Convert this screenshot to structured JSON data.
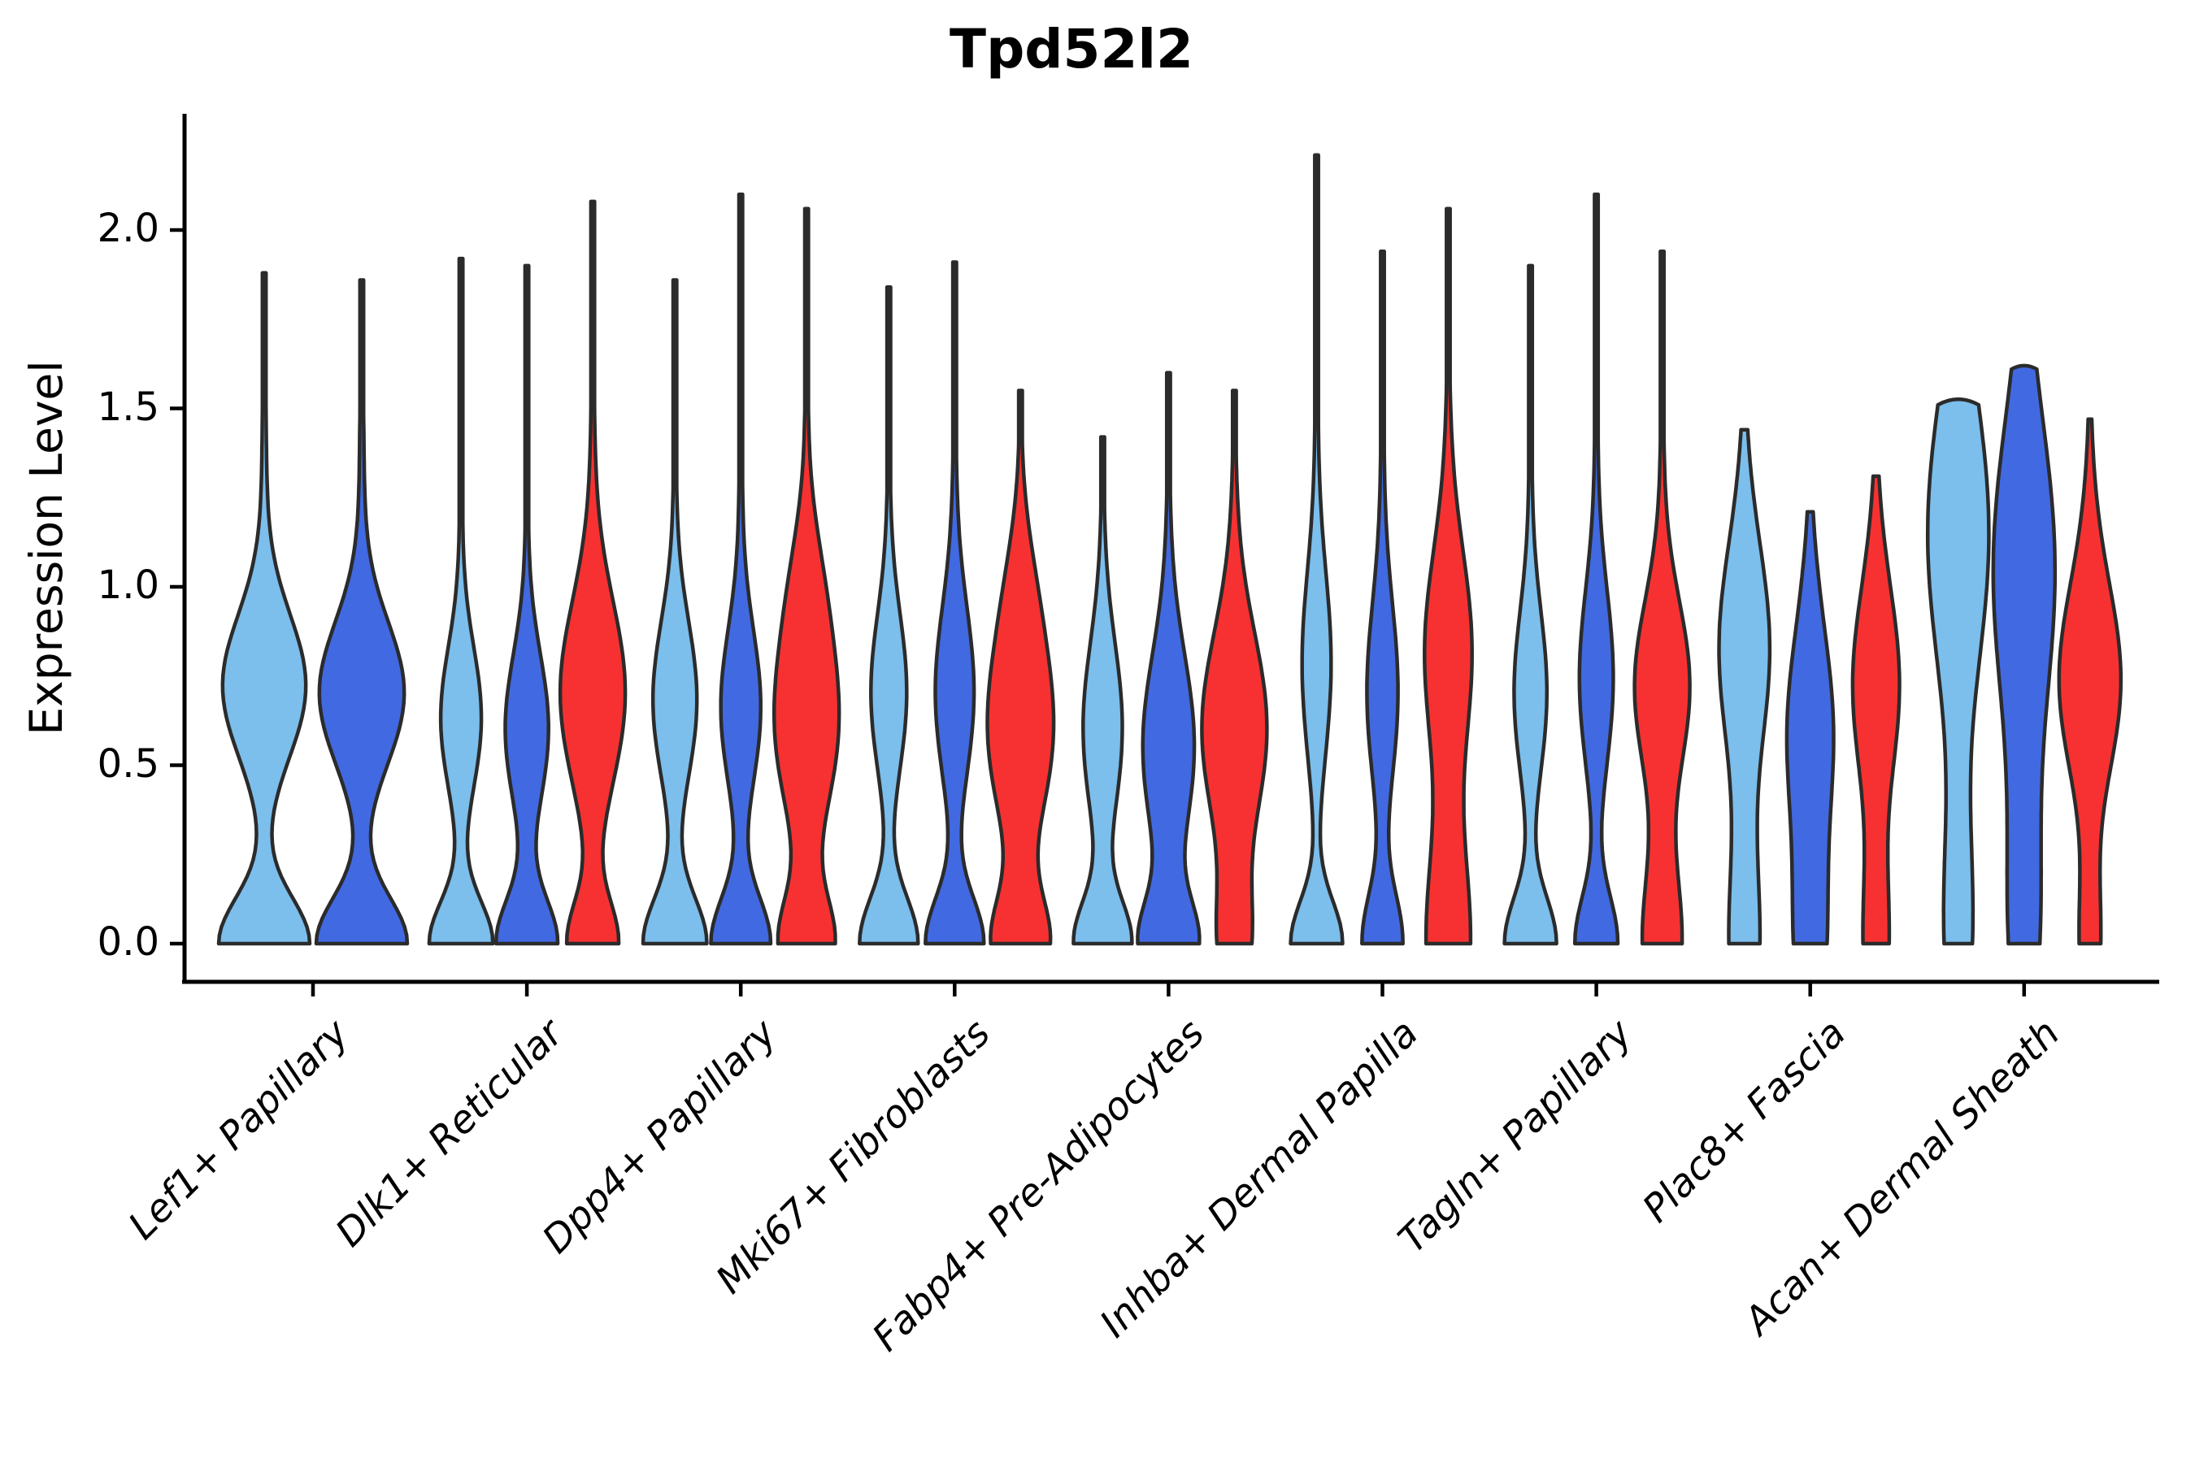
{
  "title": "Tpd52l2",
  "y_axis": {
    "label": "Expression Level",
    "tick_labels": [
      "0.0",
      "0.5",
      "1.0",
      "1.5",
      "2.0"
    ],
    "tick_values": [
      0,
      0.5,
      1.0,
      1.5,
      2.0
    ]
  },
  "colors": {
    "skyblue": "#7CBEEC",
    "royalblue": "#4169E1",
    "red": "#F73131",
    "violin_outline": "#2B2B2B",
    "axis": "#000000",
    "background": "#FFFFFF"
  },
  "chart_data": {
    "type": "violin",
    "title": "Tpd52l2",
    "xlabel": "",
    "ylabel": "Expression Level",
    "ylim": [
      -0.11,
      2.33
    ],
    "yticks": [
      0,
      0.5,
      1.0,
      1.5,
      2.0
    ],
    "grid": false,
    "legend_position": "none",
    "series_colors": [
      "#7CBEEC",
      "#4169E1",
      "#F73131"
    ],
    "series_names": [
      "skyblue",
      "royalblue",
      "red"
    ],
    "categories": [
      "Lef1+ Papillary",
      "Dlk1+ Reticular",
      "Dpp4+ Papillary",
      "Mki67+ Fibroblasts",
      "Fabp4+ Pre-Adipocytes",
      "Inhba+ Dermal Papilla",
      "Tagln+ Papillary",
      "Plac8+ Fascia",
      "Acan+ Dermal Sheath"
    ],
    "groups": [
      {
        "category": "Lef1+ Papillary",
        "violins": [
          {
            "color": "skyblue",
            "max_expression": 1.88,
            "rel_width": 1.0,
            "kde": [
              [
                1.0,
                0,
                0.13
              ],
              [
                0.9,
                0.72,
                0.2
              ],
              [
                0.05,
                1.25,
                0.35
              ]
            ]
          },
          {
            "color": "royalblue",
            "max_expression": 1.86,
            "rel_width": 1.0,
            "kde": [
              [
                1.0,
                0,
                0.13
              ],
              [
                0.92,
                0.7,
                0.2
              ],
              [
                0.05,
                1.25,
                0.35
              ]
            ]
          }
        ]
      },
      {
        "category": "Dlk1+ Reticular",
        "violins": [
          {
            "color": "skyblue",
            "max_expression": 1.92,
            "rel_width": 0.98,
            "kde": [
              [
                1.0,
                0,
                0.12
              ],
              [
                0.63,
                0.63,
                0.2
              ],
              [
                0.04,
                1.2,
                0.35
              ]
            ]
          },
          {
            "color": "royalblue",
            "max_expression": 1.9,
            "rel_width": 0.95,
            "kde": [
              [
                1.0,
                0,
                0.125
              ],
              [
                0.7,
                0.6,
                0.21
              ],
              [
                0.04,
                1.2,
                0.35
              ]
            ]
          },
          {
            "color": "red",
            "max_expression": 2.08,
            "rel_width": 1.0,
            "kde": [
              [
                0.78,
                0,
                0.12
              ],
              [
                1.0,
                0.7,
                0.26
              ],
              [
                0.05,
                1.35,
                0.35
              ]
            ]
          }
        ]
      },
      {
        "category": "Dpp4+ Papillary",
        "violins": [
          {
            "color": "skyblue",
            "max_expression": 1.86,
            "rel_width": 0.98,
            "kde": [
              [
                1.0,
                0,
                0.13
              ],
              [
                0.68,
                0.68,
                0.22
              ],
              [
                0.04,
                1.2,
                0.35
              ]
            ]
          },
          {
            "color": "royalblue",
            "max_expression": 2.1,
            "rel_width": 0.92,
            "kde": [
              [
                1.0,
                0,
                0.13
              ],
              [
                0.66,
                0.66,
                0.22
              ],
              [
                0.05,
                1.3,
                0.38
              ]
            ]
          },
          {
            "color": "red",
            "max_expression": 2.06,
            "rel_width": 1.0,
            "kde": [
              [
                0.85,
                0,
                0.13
              ],
              [
                1.0,
                0.62,
                0.26
              ],
              [
                0.25,
                1.02,
                0.18
              ],
              [
                0.05,
                1.35,
                0.35
              ]
            ]
          }
        ]
      },
      {
        "category": "Mki67+ Fibroblasts",
        "violins": [
          {
            "color": "skyblue",
            "max_expression": 1.84,
            "rel_width": 0.9,
            "kde": [
              [
                1.0,
                0,
                0.13
              ],
              [
                0.6,
                0.7,
                0.22
              ],
              [
                0.04,
                1.2,
                0.35
              ]
            ]
          },
          {
            "color": "royalblue",
            "max_expression": 1.91,
            "rel_width": 0.9,
            "kde": [
              [
                1.0,
                0,
                0.13
              ],
              [
                0.65,
                0.7,
                0.24
              ],
              [
                0.05,
                1.25,
                0.38
              ]
            ]
          },
          {
            "color": "red",
            "max_expression": 1.55,
            "rel_width": 1.02,
            "kde": [
              [
                0.85,
                0,
                0.13
              ],
              [
                1.0,
                0.6,
                0.26
              ],
              [
                0.22,
                1.0,
                0.18
              ],
              [
                0.03,
                1.3,
                0.25
              ]
            ]
          }
        ]
      },
      {
        "category": "Fabp4+ Pre-Adipocytes",
        "violins": [
          {
            "color": "skyblue",
            "max_expression": 1.42,
            "rel_width": 0.9,
            "kde": [
              [
                1.0,
                0,
                0.12
              ],
              [
                0.68,
                0.6,
                0.24
              ],
              [
                0.04,
                1.1,
                0.3
              ]
            ]
          },
          {
            "color": "royalblue",
            "max_expression": 1.6,
            "rel_width": 0.95,
            "kde": [
              [
                0.9,
                0,
                0.12
              ],
              [
                0.82,
                0.55,
                0.26
              ],
              [
                0.04,
                1.15,
                0.3
              ]
            ]
          },
          {
            "color": "red",
            "max_expression": 1.55,
            "rel_width": 1.0,
            "kde": [
              [
                0.42,
                0,
                0.16
              ],
              [
                0.92,
                0.6,
                0.27
              ],
              [
                0.04,
                1.2,
                0.3
              ]
            ]
          }
        ]
      },
      {
        "category": "Inhba+ Dermal Papilla",
        "violins": [
          {
            "color": "skyblue",
            "max_expression": 2.21,
            "rel_width": 0.8,
            "kde": [
              [
                1.0,
                0,
                0.12
              ],
              [
                0.55,
                0.78,
                0.26
              ],
              [
                0.05,
                1.5,
                0.42
              ]
            ]
          },
          {
            "color": "royalblue",
            "max_expression": 1.94,
            "rel_width": 0.63,
            "kde": [
              [
                1.0,
                0,
                0.14
              ],
              [
                0.75,
                0.7,
                0.25
              ],
              [
                0.07,
                1.3,
                0.38
              ]
            ]
          },
          {
            "color": "red",
            "max_expression": 2.06,
            "rel_width": 0.73,
            "kde": [
              [
                0.9,
                0,
                0.28
              ],
              [
                0.95,
                0.82,
                0.28
              ],
              [
                0.05,
                1.45,
                0.35
              ]
            ]
          }
        ]
      },
      {
        "category": "Tagln+ Papillary",
        "violins": [
          {
            "color": "skyblue",
            "max_expression": 1.9,
            "rel_width": 0.8,
            "kde": [
              [
                1.0,
                0,
                0.13
              ],
              [
                0.62,
                0.7,
                0.23
              ],
              [
                0.05,
                1.3,
                0.38
              ]
            ]
          },
          {
            "color": "royalblue",
            "max_expression": 2.1,
            "rel_width": 0.66,
            "kde": [
              [
                1.0,
                0,
                0.135
              ],
              [
                0.78,
                0.74,
                0.25
              ],
              [
                0.06,
                1.4,
                0.4
              ]
            ]
          },
          {
            "color": "red",
            "max_expression": 1.94,
            "rel_width": 0.85,
            "kde": [
              [
                0.72,
                0,
                0.22
              ],
              [
                1.0,
                0.72,
                0.24
              ],
              [
                0.05,
                1.35,
                0.35
              ]
            ]
          }
        ]
      },
      {
        "category": "Plac8+ Fascia",
        "violins": [
          {
            "color": "skyblue",
            "max_expression": 1.44,
            "rel_width": 0.78,
            "kde": [
              [
                0.62,
                0,
                0.28
              ],
              [
                1.0,
                0.82,
                0.28
              ],
              [
                0.08,
                1.2,
                0.25
              ]
            ]
          },
          {
            "color": "royalblue",
            "max_expression": 1.21,
            "rel_width": 0.72,
            "kde": [
              [
                0.7,
                0,
                0.26
              ],
              [
                1.0,
                0.6,
                0.26
              ],
              [
                0.12,
                1.0,
                0.2
              ]
            ]
          },
          {
            "color": "red",
            "max_expression": 1.31,
            "rel_width": 0.72,
            "kde": [
              [
                0.55,
                0,
                0.24
              ],
              [
                1.0,
                0.72,
                0.26
              ],
              [
                0.08,
                1.1,
                0.22
              ]
            ]
          }
        ]
      },
      {
        "category": "Acan+ Dermal Sheath",
        "violins": [
          {
            "color": "skyblue",
            "max_expression": 1.51,
            "rel_width": 0.94,
            "kde": [
              [
                0.4,
                0.05,
                0.3
              ],
              [
                0.88,
                1.15,
                0.4
              ]
            ]
          },
          {
            "color": "royalblue",
            "max_expression": 1.61,
            "rel_width": 0.95,
            "kde": [
              [
                0.45,
                0.05,
                0.32
              ],
              [
                0.95,
                1.05,
                0.42
              ]
            ]
          },
          {
            "color": "red",
            "max_expression": 1.47,
            "rel_width": 0.95,
            "kde": [
              [
                0.3,
                0,
                0.2
              ],
              [
                0.85,
                0.72,
                0.26
              ],
              [
                0.12,
                1.05,
                0.28
              ]
            ]
          }
        ]
      }
    ]
  }
}
